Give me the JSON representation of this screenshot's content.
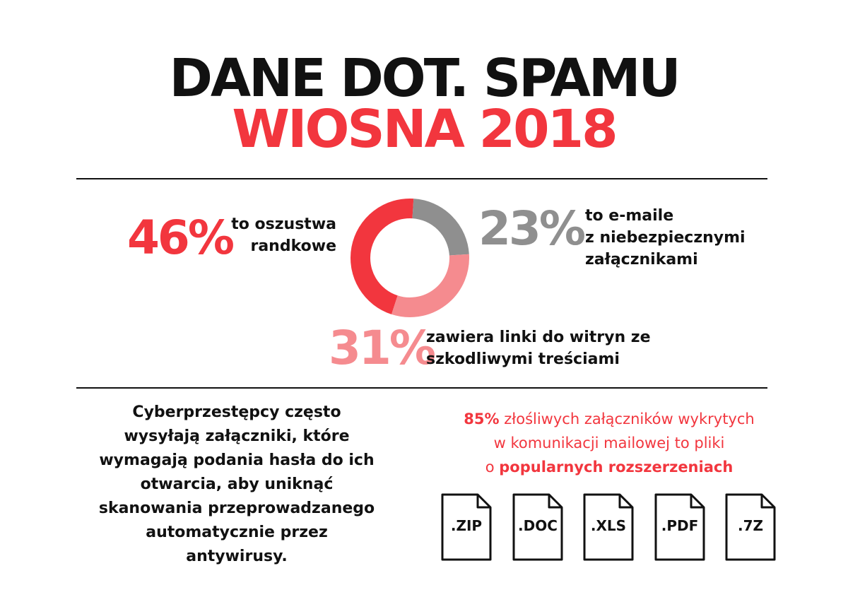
{
  "header": {
    "title_line1": "DANE DOT. SPAMU",
    "title_line2": "WIOSNA 2018"
  },
  "stats": {
    "dating": {
      "percent": "46%",
      "label_lines": [
        "to oszustwa",
        "randkowe"
      ]
    },
    "attachments": {
      "percent": "23%",
      "label_lines": [
        "to e-maile",
        "z niebezpiecznymi",
        "załącznikami"
      ]
    },
    "links": {
      "percent": "31%",
      "label_lines": [
        "zawiera linki do witryn ze",
        "szkodliwymi treściami"
      ]
    }
  },
  "chart_data": {
    "type": "pie",
    "variant": "donut",
    "categories": [
      "to oszustwa randkowe",
      "to e-maile z niebezpiecznymi załącznikami",
      "zawiera linki do witryn ze szkodliwymi treściami"
    ],
    "values": [
      46,
      23,
      31
    ],
    "colors": [
      "#f2363e",
      "#8f8f8f",
      "#f58b8f"
    ]
  },
  "left_block": {
    "lines": [
      "Cyberprzestępcy często",
      "wysyłają załączniki, które",
      "wymagają podania hasła do ich",
      "otwarcia, aby uniknąć",
      "skanowania przeprowadzanego",
      "automatycznie przez",
      "antywirusy."
    ]
  },
  "right_block": {
    "highlight_percent": "85%",
    "line1_rest": "złośliwych załączników wykrytych",
    "line2": "w komunikacji mailowej to pliki",
    "line3_prefix": "o",
    "line3_bold": "popularnych rozszerzeniach"
  },
  "files": [
    {
      "ext": ".ZIP"
    },
    {
      "ext": ".DOC"
    },
    {
      "ext": ".XLS"
    },
    {
      "ext": ".PDF"
    },
    {
      "ext": ".7Z"
    }
  ]
}
